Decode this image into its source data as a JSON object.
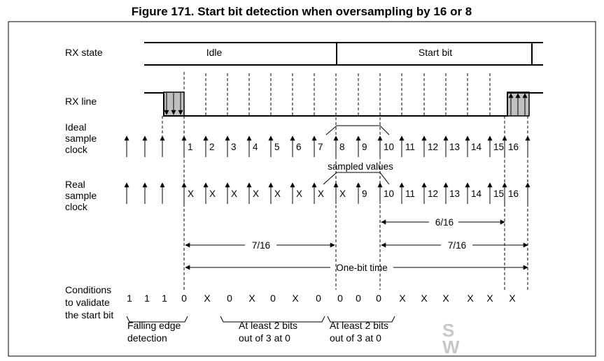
{
  "title": "Figure 171. Start bit detection when oversampling by 16 or 8",
  "rows": {
    "rx_state": "RX state",
    "rx_line": "RX line",
    "ideal_clock": [
      "Ideal",
      "sample",
      "clock"
    ],
    "real_clock": [
      "Real",
      "sample",
      "clock"
    ],
    "conditions": [
      "Conditions",
      "to validate",
      "the start bit"
    ]
  },
  "states": {
    "idle": "Idle",
    "start_bit": "Start bit"
  },
  "ideal_labels": [
    "1",
    "2",
    "3",
    "4",
    "5",
    "6",
    "7",
    "8",
    "9",
    "10",
    "11",
    "12",
    "13",
    "14",
    "15",
    "16"
  ],
  "real_labels": [
    "X",
    "X",
    "X",
    "X",
    "X",
    "X",
    "X",
    "X",
    "9",
    "10",
    "11",
    "12",
    "13",
    "14",
    "15",
    "16"
  ],
  "sampled_values": "sampled values",
  "measures": {
    "six_sixteenths": "6/16",
    "seven_sixteenths": "7/16",
    "one_bit_time": "One-bit time"
  },
  "conditions_values": [
    "1",
    "1",
    "1",
    "0",
    "X",
    "0",
    "X",
    "0",
    "X",
    "0",
    "0",
    "0",
    "0",
    "X",
    "X",
    "X",
    "X",
    "X",
    "X"
  ],
  "notes": {
    "falling_edge": [
      "Falling edge",
      "detection"
    ],
    "at_least_1": [
      "At least 2 bits",
      "out of 3 at 0"
    ],
    "at_least_2": [
      "At least 2 bits",
      "out of 3 at 0"
    ]
  },
  "watermark": "S\nW"
}
